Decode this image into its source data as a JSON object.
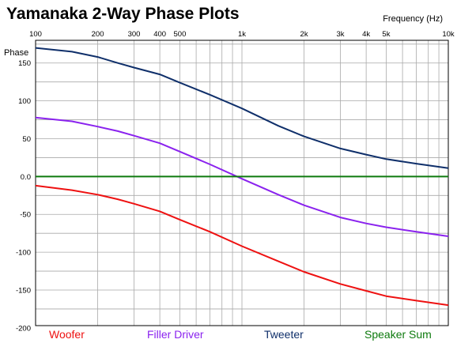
{
  "chart_data": {
    "type": "line",
    "title": "Yamanaka 2-Way Phase Plots",
    "xlabel": "Frequency (Hz)",
    "ylabel": "Phase",
    "x_scale": "log",
    "xlim": [
      100,
      10000
    ],
    "ylim": [
      -200,
      180
    ],
    "grid": true,
    "legend_position": "bottom",
    "x_ticks": [
      {
        "value": 100,
        "label": "100"
      },
      {
        "value": 200,
        "label": "200"
      },
      {
        "value": 300,
        "label": "300"
      },
      {
        "value": 400,
        "label": "400"
      },
      {
        "value": 500,
        "label": "500"
      },
      {
        "value": 1000,
        "label": "1k"
      },
      {
        "value": 2000,
        "label": "2k"
      },
      {
        "value": 3000,
        "label": "3k"
      },
      {
        "value": 4000,
        "label": "4k"
      },
      {
        "value": 5000,
        "label": "5k"
      },
      {
        "value": 10000,
        "label": "10k"
      }
    ],
    "y_ticks": [
      {
        "value": 150,
        "label": "150"
      },
      {
        "value": 100,
        "label": "100"
      },
      {
        "value": 50,
        "label": "50"
      },
      {
        "value": 0,
        "label": "0.0"
      },
      {
        "value": -50,
        "label": "-50"
      },
      {
        "value": -100,
        "label": "-100"
      },
      {
        "value": -150,
        "label": "-150"
      },
      {
        "value": -200,
        "label": "-200"
      }
    ],
    "x": [
      100,
      150,
      200,
      250,
      300,
      400,
      500,
      700,
      1000,
      1500,
      2000,
      3000,
      4000,
      5000,
      7000,
      10000
    ],
    "series": [
      {
        "name": "Woofer",
        "color": "#ee1111",
        "values": [
          -12,
          -18,
          -24,
          -30,
          -36,
          -46,
          -57,
          -73,
          -92,
          -112,
          -126,
          -142,
          -151,
          -158,
          -164,
          -170
        ]
      },
      {
        "name": "Filler Driver",
        "color": "#8a22ee",
        "values": [
          78,
          73,
          66,
          60,
          54,
          44,
          33,
          16,
          -3,
          -24,
          -38,
          -54,
          -62,
          -67,
          -73,
          -79
        ]
      },
      {
        "name": "Tweeter",
        "color": "#0f2f6a",
        "values": [
          170,
          165,
          158,
          150,
          144,
          135,
          124,
          108,
          90,
          67,
          53,
          37,
          29,
          23,
          17,
          11
        ]
      },
      {
        "name": "Speaker Sum",
        "color": "#0e7a0e",
        "values": [
          0,
          0,
          0,
          0,
          0,
          0,
          0,
          0,
          0,
          0,
          0,
          0,
          0,
          0,
          0,
          0
        ]
      }
    ]
  }
}
